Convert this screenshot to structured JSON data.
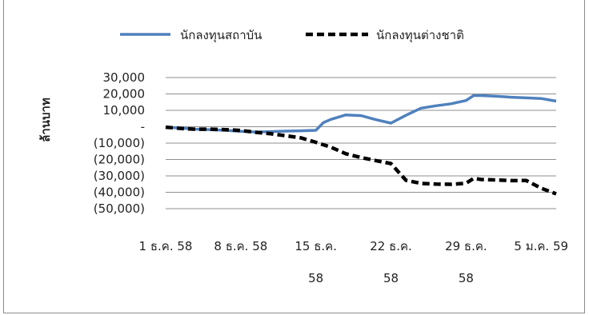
{
  "chart_data": {
    "type": "line",
    "title": "",
    "ylabel": "ล้านบาท",
    "xlabel": "",
    "ylim": [
      -50000,
      30000
    ],
    "yticks": [
      {
        "value": 30000,
        "label": "30,000"
      },
      {
        "value": 20000,
        "label": "20,000"
      },
      {
        "value": 10000,
        "label": "10,000"
      },
      {
        "value": 0,
        "label": "-"
      },
      {
        "value": -10000,
        "label": "(10,000)"
      },
      {
        "value": -20000,
        "label": "(20,000)"
      },
      {
        "value": -30000,
        "label": "(30,000)"
      },
      {
        "value": -40000,
        "label": "(40,000)"
      },
      {
        "value": -50000,
        "label": "(50,000)"
      }
    ],
    "xlim": [
      0,
      26
    ],
    "xticks": [
      {
        "x": 0,
        "lines": [
          "1 ธ.ค. 58"
        ]
      },
      {
        "x": 5,
        "lines": [
          "8 ธ.ค. 58"
        ]
      },
      {
        "x": 10,
        "lines": [
          "15 ธ.ค.",
          "58"
        ]
      },
      {
        "x": 15,
        "lines": [
          "22 ธ.ค.",
          "58"
        ]
      },
      {
        "x": 20,
        "lines": [
          "29 ธ.ค.",
          "58"
        ]
      },
      {
        "x": 25,
        "lines": [
          "5 ม.ค. 59"
        ]
      }
    ],
    "grid": true,
    "legend_position": "top",
    "series": [
      {
        "name": "นักลงทุนสถาบัน",
        "color": "#4f81bd",
        "style": "solid",
        "x": [
          0,
          1,
          2,
          3,
          4,
          5,
          6,
          7,
          8,
          9,
          10,
          10.5,
          11,
          12,
          13,
          14,
          15,
          16,
          17,
          18,
          19,
          20,
          20.5,
          21,
          22,
          23,
          24,
          25,
          26
        ],
        "y": [
          -300,
          -800,
          -1500,
          -1800,
          -2200,
          -2800,
          -3200,
          -3000,
          -2700,
          -2500,
          -2200,
          2500,
          4500,
          7200,
          6800,
          4300,
          2200,
          7000,
          11300,
          12800,
          14000,
          16000,
          19000,
          19000,
          18600,
          18000,
          17600,
          17200,
          15600
        ]
      },
      {
        "name": "นักลงทุนต่างชาติ",
        "color": "#000000",
        "style": "dashed",
        "x": [
          0,
          1,
          2,
          3,
          4,
          5,
          6,
          7,
          8,
          9,
          10,
          11,
          12,
          13,
          14,
          15,
          16,
          17,
          18,
          19,
          20,
          20.5,
          21,
          22,
          23,
          24,
          25,
          26
        ],
        "y": [
          -300,
          -1000,
          -1500,
          -1500,
          -1800,
          -2300,
          -3400,
          -4300,
          -5500,
          -6800,
          -9500,
          -12500,
          -16500,
          -18800,
          -20700,
          -22500,
          -32700,
          -34600,
          -35000,
          -35100,
          -34500,
          -31500,
          -32200,
          -32500,
          -32900,
          -32800,
          -37500,
          -41000
        ]
      }
    ]
  }
}
